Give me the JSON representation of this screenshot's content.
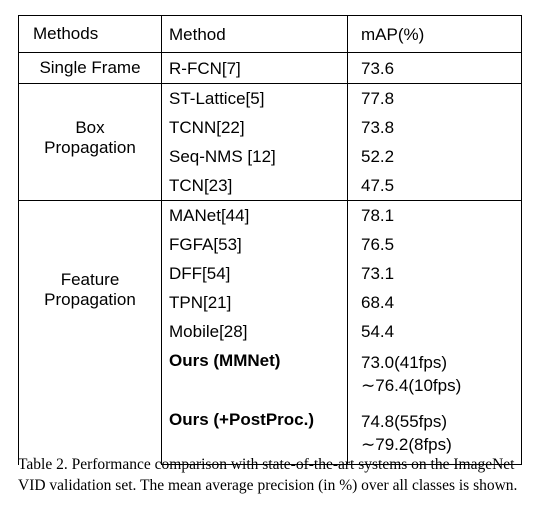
{
  "table": {
    "headers": [
      "Methods",
      "Method",
      "mAP(%)"
    ],
    "single_frame": {
      "group": "Single Frame",
      "method": "R-FCN[7]",
      "map": "73.6"
    },
    "box_propagation": {
      "group_line1": "Box",
      "group_line2": "Propagation",
      "rows": [
        {
          "method": "ST-Lattice[5]",
          "map": "77.8"
        },
        {
          "method": "TCNN[22]",
          "map": "73.8"
        },
        {
          "method": "Seq-NMS [12]",
          "map": "52.2"
        },
        {
          "method": "TCN[23]",
          "map": "47.5"
        }
      ]
    },
    "feature_propagation": {
      "group_line1": "Feature",
      "group_line2": "Propagation",
      "rows": [
        {
          "method": "MANet[44]",
          "map": "78.1"
        },
        {
          "method": "FGFA[53]",
          "map": "76.5"
        },
        {
          "method": "DFF[54]",
          "map": "73.1"
        },
        {
          "method": "TPN[21]",
          "map": "68.4"
        },
        {
          "method": "Mobile[28]",
          "map": "54.4"
        },
        {
          "method": "Ours (MMNet)",
          "map_line1": "73.0(41fps)",
          "map_line2": "∼76.4(10fps)"
        },
        {
          "method": "Ours (+PostProc.)",
          "map_line1": "74.8(55fps)",
          "map_line2": "∼79.2(8fps)"
        }
      ]
    }
  },
  "caption": "Table 2. Performance comparison with state-of-the-art systems on the ImageNet VID validation set. The mean average precision (in %) over all classes is shown."
}
